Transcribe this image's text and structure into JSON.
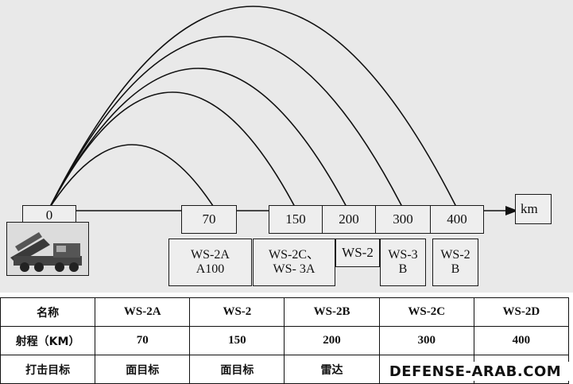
{
  "diagram": {
    "axis_unit": "km",
    "origin_label": "0",
    "ticks": [
      "70",
      "150",
      "200",
      "300",
      "400"
    ],
    "arc_ranges_km": [
      70,
      150,
      200,
      300,
      400
    ],
    "system_labels": [
      {
        "lines": [
          "WS-2A",
          "A100"
        ]
      },
      {
        "lines": [
          "WS-2C、",
          "WS- 3A"
        ]
      },
      {
        "lines": [
          "WS-2"
        ]
      },
      {
        "lines": [
          "WS-3",
          "B"
        ]
      },
      {
        "lines": [
          "WS-2",
          "B"
        ]
      }
    ]
  },
  "table": {
    "header": [
      "名称",
      "WS-2A",
      "WS-2",
      "WS-2B",
      "WS-2C",
      "WS-2D"
    ],
    "rows": [
      [
        "射程（KM）",
        "70",
        "150",
        "200",
        "300",
        "400"
      ],
      [
        "打击目标",
        "面目标",
        "面目标",
        "雷达",
        "",
        ""
      ]
    ]
  },
  "watermark": "DEFENSE-ARAB.COM"
}
